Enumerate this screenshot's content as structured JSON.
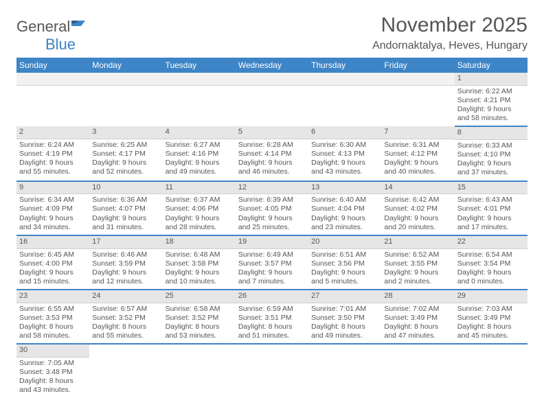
{
  "brand": {
    "part1": "General",
    "part2": "Blue"
  },
  "title": "November 2025",
  "subtitle": "Andornaktalya, Heves, Hungary",
  "colors": {
    "header_bg": "#3D85C6",
    "accent": "#3D85C6"
  },
  "weekdays": [
    "Sunday",
    "Monday",
    "Tuesday",
    "Wednesday",
    "Thursday",
    "Friday",
    "Saturday"
  ],
  "grid": [
    [
      null,
      null,
      null,
      null,
      null,
      null,
      {
        "n": "1",
        "sr": "Sunrise: 6:22 AM",
        "ss": "Sunset: 4:21 PM",
        "dl": "Daylight: 9 hours and 58 minutes."
      }
    ],
    [
      {
        "n": "2",
        "sr": "Sunrise: 6:24 AM",
        "ss": "Sunset: 4:19 PM",
        "dl": "Daylight: 9 hours and 55 minutes."
      },
      {
        "n": "3",
        "sr": "Sunrise: 6:25 AM",
        "ss": "Sunset: 4:17 PM",
        "dl": "Daylight: 9 hours and 52 minutes."
      },
      {
        "n": "4",
        "sr": "Sunrise: 6:27 AM",
        "ss": "Sunset: 4:16 PM",
        "dl": "Daylight: 9 hours and 49 minutes."
      },
      {
        "n": "5",
        "sr": "Sunrise: 6:28 AM",
        "ss": "Sunset: 4:14 PM",
        "dl": "Daylight: 9 hours and 46 minutes."
      },
      {
        "n": "6",
        "sr": "Sunrise: 6:30 AM",
        "ss": "Sunset: 4:13 PM",
        "dl": "Daylight: 9 hours and 43 minutes."
      },
      {
        "n": "7",
        "sr": "Sunrise: 6:31 AM",
        "ss": "Sunset: 4:12 PM",
        "dl": "Daylight: 9 hours and 40 minutes."
      },
      {
        "n": "8",
        "sr": "Sunrise: 6:33 AM",
        "ss": "Sunset: 4:10 PM",
        "dl": "Daylight: 9 hours and 37 minutes."
      }
    ],
    [
      {
        "n": "9",
        "sr": "Sunrise: 6:34 AM",
        "ss": "Sunset: 4:09 PM",
        "dl": "Daylight: 9 hours and 34 minutes."
      },
      {
        "n": "10",
        "sr": "Sunrise: 6:36 AM",
        "ss": "Sunset: 4:07 PM",
        "dl": "Daylight: 9 hours and 31 minutes."
      },
      {
        "n": "11",
        "sr": "Sunrise: 6:37 AM",
        "ss": "Sunset: 4:06 PM",
        "dl": "Daylight: 9 hours and 28 minutes."
      },
      {
        "n": "12",
        "sr": "Sunrise: 6:39 AM",
        "ss": "Sunset: 4:05 PM",
        "dl": "Daylight: 9 hours and 25 minutes."
      },
      {
        "n": "13",
        "sr": "Sunrise: 6:40 AM",
        "ss": "Sunset: 4:04 PM",
        "dl": "Daylight: 9 hours and 23 minutes."
      },
      {
        "n": "14",
        "sr": "Sunrise: 6:42 AM",
        "ss": "Sunset: 4:02 PM",
        "dl": "Daylight: 9 hours and 20 minutes."
      },
      {
        "n": "15",
        "sr": "Sunrise: 6:43 AM",
        "ss": "Sunset: 4:01 PM",
        "dl": "Daylight: 9 hours and 17 minutes."
      }
    ],
    [
      {
        "n": "16",
        "sr": "Sunrise: 6:45 AM",
        "ss": "Sunset: 4:00 PM",
        "dl": "Daylight: 9 hours and 15 minutes."
      },
      {
        "n": "17",
        "sr": "Sunrise: 6:46 AM",
        "ss": "Sunset: 3:59 PM",
        "dl": "Daylight: 9 hours and 12 minutes."
      },
      {
        "n": "18",
        "sr": "Sunrise: 6:48 AM",
        "ss": "Sunset: 3:58 PM",
        "dl": "Daylight: 9 hours and 10 minutes."
      },
      {
        "n": "19",
        "sr": "Sunrise: 6:49 AM",
        "ss": "Sunset: 3:57 PM",
        "dl": "Daylight: 9 hours and 7 minutes."
      },
      {
        "n": "20",
        "sr": "Sunrise: 6:51 AM",
        "ss": "Sunset: 3:56 PM",
        "dl": "Daylight: 9 hours and 5 minutes."
      },
      {
        "n": "21",
        "sr": "Sunrise: 6:52 AM",
        "ss": "Sunset: 3:55 PM",
        "dl": "Daylight: 9 hours and 2 minutes."
      },
      {
        "n": "22",
        "sr": "Sunrise: 6:54 AM",
        "ss": "Sunset: 3:54 PM",
        "dl": "Daylight: 9 hours and 0 minutes."
      }
    ],
    [
      {
        "n": "23",
        "sr": "Sunrise: 6:55 AM",
        "ss": "Sunset: 3:53 PM",
        "dl": "Daylight: 8 hours and 58 minutes."
      },
      {
        "n": "24",
        "sr": "Sunrise: 6:57 AM",
        "ss": "Sunset: 3:52 PM",
        "dl": "Daylight: 8 hours and 55 minutes."
      },
      {
        "n": "25",
        "sr": "Sunrise: 6:58 AM",
        "ss": "Sunset: 3:52 PM",
        "dl": "Daylight: 8 hours and 53 minutes."
      },
      {
        "n": "26",
        "sr": "Sunrise: 6:59 AM",
        "ss": "Sunset: 3:51 PM",
        "dl": "Daylight: 8 hours and 51 minutes."
      },
      {
        "n": "27",
        "sr": "Sunrise: 7:01 AM",
        "ss": "Sunset: 3:50 PM",
        "dl": "Daylight: 8 hours and 49 minutes."
      },
      {
        "n": "28",
        "sr": "Sunrise: 7:02 AM",
        "ss": "Sunset: 3:49 PM",
        "dl": "Daylight: 8 hours and 47 minutes."
      },
      {
        "n": "29",
        "sr": "Sunrise: 7:03 AM",
        "ss": "Sunset: 3:49 PM",
        "dl": "Daylight: 8 hours and 45 minutes."
      }
    ],
    [
      {
        "n": "30",
        "sr": "Sunrise: 7:05 AM",
        "ss": "Sunset: 3:48 PM",
        "dl": "Daylight: 8 hours and 43 minutes."
      },
      null,
      null,
      null,
      null,
      null,
      null
    ]
  ]
}
